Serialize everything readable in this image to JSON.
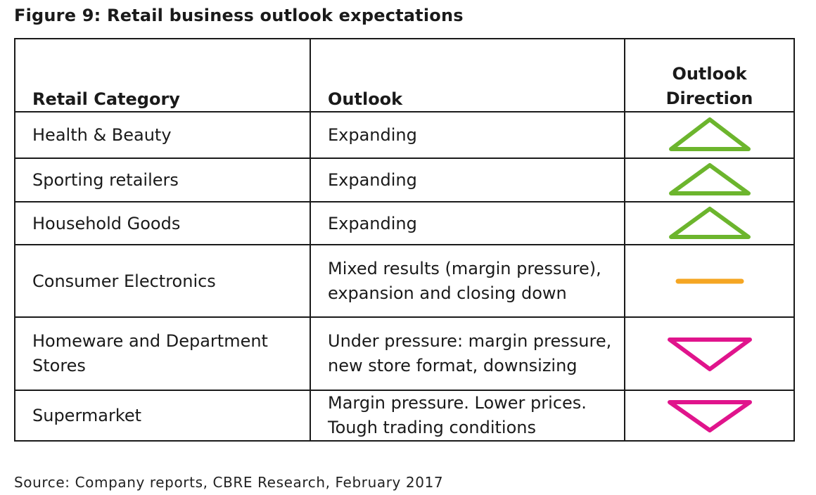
{
  "title": "Figure 9: Retail business outlook expectations",
  "table": {
    "headers": {
      "category": "Retail Category",
      "outlook": "Outlook",
      "direction_line1": "Outlook",
      "direction_line2": "Direction"
    },
    "rows": [
      {
        "category": "Health & Beauty",
        "outlook": "Expanding",
        "direction": "up",
        "direction_icon": "up-triangle-icon",
        "color": "#6cb52d"
      },
      {
        "category": "Sporting retailers",
        "outlook": "Expanding",
        "direction": "up",
        "direction_icon": "up-triangle-icon",
        "color": "#6cb52d"
      },
      {
        "category": "Household Goods",
        "outlook": "Expanding",
        "direction": "up",
        "direction_icon": "up-triangle-icon",
        "color": "#6cb52d"
      },
      {
        "category": "Consumer Electronics",
        "outlook": "Mixed results (margin pressure), expansion and closing down",
        "direction": "flat",
        "direction_icon": "dash-icon",
        "color": "#f5a623"
      },
      {
        "category": "Homeware and Department Stores",
        "outlook": "Under pressure: margin pressure, new store format, downsizing",
        "direction": "down",
        "direction_icon": "down-triangle-icon",
        "color": "#e0148c"
      },
      {
        "category": "Supermarket",
        "outlook": "Margin pressure. Lower prices. Tough trading conditions",
        "direction": "down",
        "direction_icon": "down-triangle-icon",
        "color": "#e0148c"
      }
    ]
  },
  "source": "Source: Company reports, CBRE Research, February 2017"
}
